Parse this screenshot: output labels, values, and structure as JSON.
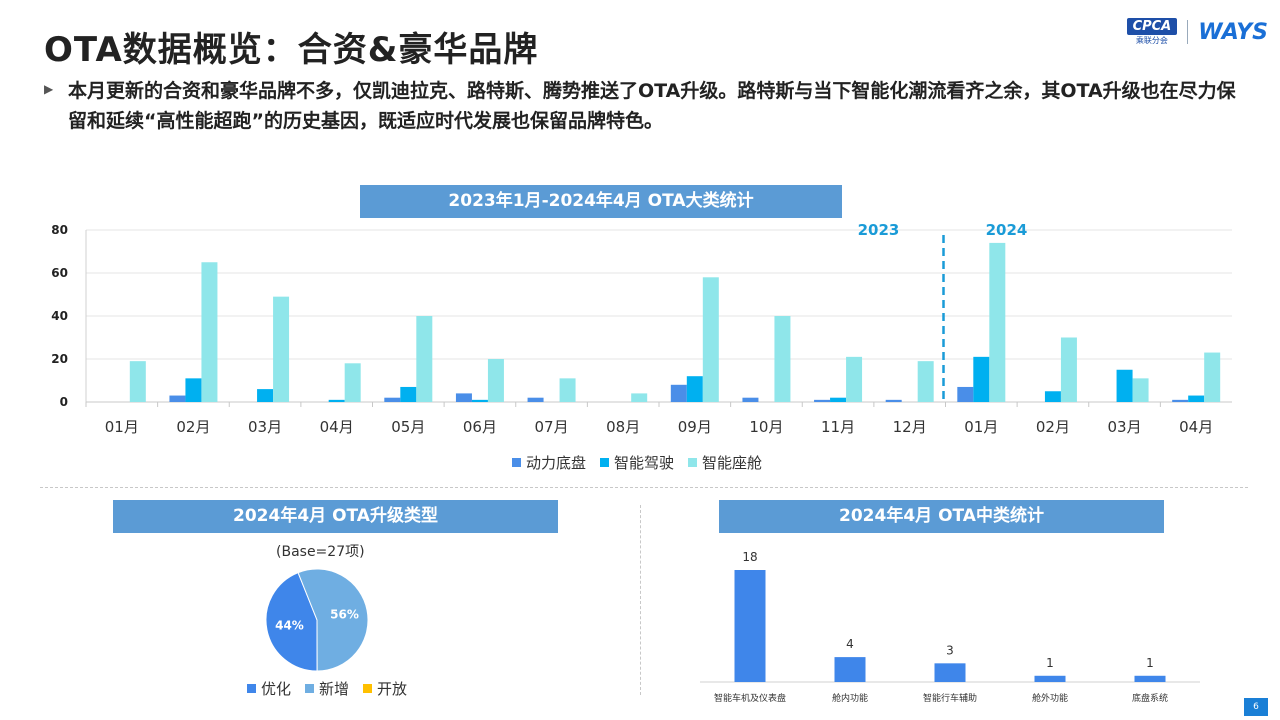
{
  "page": {
    "title": "OTA数据概览：合资&豪华品牌",
    "bullet": "本月更新的合资和豪华品牌不多，仅凯迪拉克、路特斯、腾势推送了OTA升级。路特斯与当下智能化潮流看齐之余，其OTA升级也在尽力保留和延续“高性能超跑”的历史基因，既适应时代发展也保留品牌特色。",
    "logo_cpca": "CPCA",
    "logo_cpca_sub": "乘联分会",
    "logo_ways": "WAYS",
    "page_number": "6"
  },
  "chart_data": [
    {
      "type": "bar",
      "title": "2023年1月-2024年4月 OTA大类统计",
      "categories": [
        "01月",
        "02月",
        "03月",
        "04月",
        "05月",
        "06月",
        "07月",
        "08月",
        "09月",
        "10月",
        "11月",
        "12月",
        "01月",
        "02月",
        "03月",
        "04月"
      ],
      "period_labels": [
        "2023",
        "2024"
      ],
      "ylim": [
        0,
        80
      ],
      "yticks": [
        0,
        20,
        40,
        60,
        80
      ],
      "series": [
        {
          "name": "动力底盘",
          "color": "#4a8ee8",
          "values": [
            0,
            3,
            0,
            0,
            2,
            4,
            2,
            0,
            8,
            2,
            1,
            1,
            7,
            0,
            0,
            1
          ]
        },
        {
          "name": "智能驾驶",
          "color": "#00b0f0",
          "values": [
            0,
            11,
            6,
            1,
            7,
            1,
            0,
            0,
            12,
            0,
            2,
            0,
            21,
            5,
            15,
            3
          ]
        },
        {
          "name": "智能座舱",
          "color": "#8fe6ea",
          "values": [
            19,
            65,
            49,
            18,
            40,
            20,
            11,
            4,
            58,
            40,
            21,
            19,
            74,
            30,
            11,
            23
          ]
        }
      ]
    },
    {
      "type": "pie",
      "title": "2024年4月 OTA升级类型",
      "base_note": "(Base=27项)",
      "slices": [
        {
          "name": "优化",
          "value": 44,
          "label": "44%",
          "color": "#3f86ea"
        },
        {
          "name": "新增",
          "value": 56,
          "label": "56%",
          "color": "#6faee2"
        },
        {
          "name": "开放",
          "value": 0,
          "label": "",
          "color": "#ffc000"
        }
      ]
    },
    {
      "type": "bar",
      "title": "2024年4月 OTA中类统计",
      "categories": [
        "智能车机及仪表盘",
        "舱内功能",
        "智能行车辅助",
        "舱外功能",
        "底盘系统"
      ],
      "values": [
        18,
        4,
        3,
        1,
        1
      ],
      "ylim": [
        0,
        20
      ],
      "color": "#3f86ea"
    }
  ]
}
